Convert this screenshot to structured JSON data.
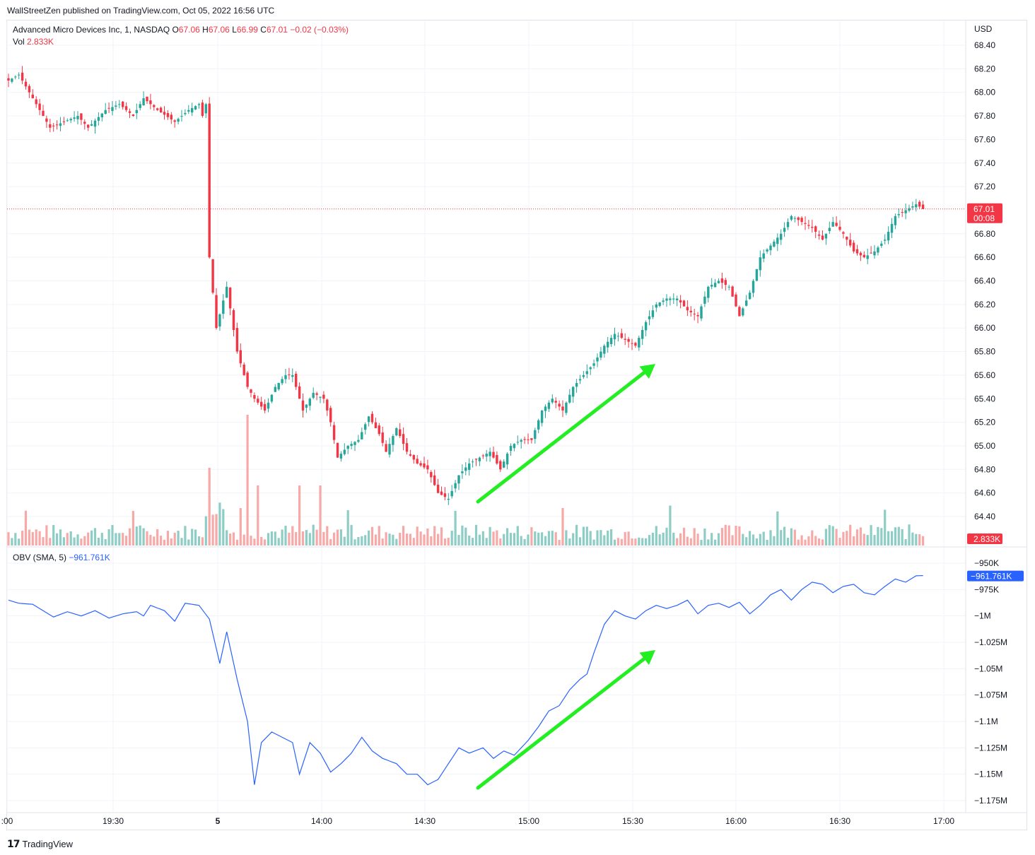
{
  "header": {
    "publisher_text": "WallStreetZen published on TradingView.com, Oct 05, 2022 16:56 UTC"
  },
  "legend": {
    "symbol": "Advanced Micro Devices Inc, 1, NASDAQ",
    "o_label": "O",
    "o_value": "67.06",
    "h_label": "H",
    "h_value": "67.06",
    "l_label": "L",
    "l_value": "66.99",
    "c_label": "C",
    "c_value": "67.01",
    "change": "−0.02 (−0.03%)",
    "vol_label": "Vol",
    "vol_value": "2.833K",
    "obv_label": "OBV (SMA, 5)",
    "obv_value": "−961.761K"
  },
  "badges": {
    "price": "67.01",
    "countdown": "00:08",
    "volume": "2.833K",
    "obv": "−961.761K"
  },
  "footer": {
    "brand": "TradingView",
    "brand_icon": "tradingview-logo-icon"
  },
  "colors": {
    "up": "#26a69a",
    "down": "#f23645",
    "vol_up": "#8dcdc5",
    "vol_down": "#f7a9a7",
    "obv_line": "#2962ff",
    "arrow": "#22ee22",
    "grid": "#f0f3fa"
  },
  "chart_data": [
    {
      "type": "candlestick",
      "title": "Advanced Micro Devices Inc, 1, NASDAQ",
      "currency": "USD",
      "y_ticks": [
        "68.40",
        "68.20",
        "68.00",
        "67.80",
        "67.60",
        "67.40",
        "67.20",
        "66.80",
        "66.60",
        "66.40",
        "66.20",
        "66.00",
        "65.80",
        "65.60",
        "65.40",
        "65.20",
        "65.00",
        "64.80",
        "64.60",
        "64.40"
      ],
      "ylim": [
        64.3,
        68.5
      ],
      "last_price": 67.01,
      "x_ticks": [
        ":00",
        "19:30",
        "5",
        "14:00",
        "14:30",
        "15:00",
        "15:30",
        "16:00",
        "16:30",
        "17:00"
      ],
      "grid": true,
      "anchors": [
        [
          0,
          68.1
        ],
        [
          3,
          68.15
        ],
        [
          5,
          68.05
        ],
        [
          9,
          67.85
        ],
        [
          12,
          67.7
        ],
        [
          16,
          67.75
        ],
        [
          20,
          67.8
        ],
        [
          23,
          67.7
        ],
        [
          28,
          67.85
        ],
        [
          32,
          67.9
        ],
        [
          36,
          67.8
        ],
        [
          39,
          67.95
        ],
        [
          43,
          67.85
        ],
        [
          48,
          67.75
        ],
        [
          52,
          67.85
        ],
        [
          55,
          67.9
        ],
        [
          56,
          67.8
        ],
        [
          57,
          67.9
        ],
        [
          58,
          66.6
        ],
        [
          60,
          66.0
        ],
        [
          63,
          66.35
        ],
        [
          66,
          65.8
        ],
        [
          69,
          65.5
        ],
        [
          71,
          65.4
        ],
        [
          74,
          65.3
        ],
        [
          77,
          65.5
        ],
        [
          80,
          65.6
        ],
        [
          82,
          65.6
        ],
        [
          85,
          65.3
        ],
        [
          88,
          65.45
        ],
        [
          91,
          65.4
        ],
        [
          93,
          65.2
        ],
        [
          95,
          64.9
        ],
        [
          98,
          65.0
        ],
        [
          101,
          65.05
        ],
        [
          104,
          65.25
        ],
        [
          107,
          65.1
        ],
        [
          109,
          64.95
        ],
        [
          112,
          65.15
        ],
        [
          115,
          64.95
        ],
        [
          118,
          64.85
        ],
        [
          121,
          64.8
        ],
        [
          124,
          64.6
        ],
        [
          127,
          64.55
        ],
        [
          130,
          64.75
        ],
        [
          133,
          64.85
        ],
        [
          136,
          64.9
        ],
        [
          139,
          64.95
        ],
        [
          142,
          64.8
        ],
        [
          145,
          65.0
        ],
        [
          148,
          65.05
        ],
        [
          151,
          65.05
        ],
        [
          154,
          65.3
        ],
        [
          157,
          65.4
        ],
        [
          160,
          65.3
        ],
        [
          163,
          65.5
        ],
        [
          166,
          65.6
        ],
        [
          169,
          65.7
        ],
        [
          172,
          65.85
        ],
        [
          175,
          65.95
        ],
        [
          178,
          65.9
        ],
        [
          181,
          65.85
        ],
        [
          184,
          66.05
        ],
        [
          187,
          66.2
        ],
        [
          190,
          66.25
        ],
        [
          193,
          66.25
        ],
        [
          196,
          66.15
        ],
        [
          199,
          66.1
        ],
        [
          202,
          66.35
        ],
        [
          205,
          66.4
        ],
        [
          208,
          66.35
        ],
        [
          211,
          66.1
        ],
        [
          214,
          66.3
        ],
        [
          217,
          66.6
        ],
        [
          220,
          66.7
        ],
        [
          223,
          66.8
        ],
        [
          226,
          66.95
        ],
        [
          229,
          66.9
        ],
        [
          232,
          66.85
        ],
        [
          235,
          66.75
        ],
        [
          238,
          66.9
        ],
        [
          241,
          66.8
        ],
        [
          244,
          66.65
        ],
        [
          247,
          66.6
        ],
        [
          250,
          66.65
        ],
        [
          253,
          66.75
        ],
        [
          256,
          66.95
        ],
        [
          259,
          67.0
        ],
        [
          262,
          67.05
        ],
        [
          264,
          67.01
        ]
      ],
      "volume_level": "2.833K"
    },
    {
      "type": "line",
      "title": "OBV (SMA, 5)",
      "y_ticks": [
        "−950K",
        "−975K",
        "−1M",
        "−1.025M",
        "−1.05M",
        "−1.075M",
        "−1.1M",
        "−1.125M",
        "−1.15M",
        "−1.175M"
      ],
      "ylim": [
        -1180,
        -945
      ],
      "y_unit": "K",
      "last_value": -961.761,
      "anchors": [
        [
          0,
          -985
        ],
        [
          3,
          -988
        ],
        [
          7,
          -989
        ],
        [
          10,
          -995
        ],
        [
          13,
          -1001
        ],
        [
          17,
          -996
        ],
        [
          21,
          -1000
        ],
        [
          25,
          -995
        ],
        [
          29,
          -1002
        ],
        [
          33,
          -998
        ],
        [
          37,
          -996
        ],
        [
          39,
          -1000
        ],
        [
          41,
          -990
        ],
        [
          45,
          -995
        ],
        [
          48,
          -1005
        ],
        [
          51,
          -988
        ],
        [
          55,
          -990
        ],
        [
          58,
          -1003
        ],
        [
          61,
          -1045
        ],
        [
          63,
          -1015
        ],
        [
          66,
          -1060
        ],
        [
          69,
          -1100
        ],
        [
          71,
          -1160
        ],
        [
          73,
          -1120
        ],
        [
          76,
          -1110
        ],
        [
          79,
          -1115
        ],
        [
          82,
          -1120
        ],
        [
          84,
          -1150
        ],
        [
          87,
          -1120
        ],
        [
          90,
          -1130
        ],
        [
          93,
          -1148
        ],
        [
          96,
          -1140
        ],
        [
          99,
          -1130
        ],
        [
          102,
          -1115
        ],
        [
          105,
          -1128
        ],
        [
          108,
          -1135
        ],
        [
          112,
          -1140
        ],
        [
          115,
          -1150
        ],
        [
          118,
          -1150
        ],
        [
          121,
          -1160
        ],
        [
          124,
          -1155
        ],
        [
          127,
          -1140
        ],
        [
          130,
          -1125
        ],
        [
          133,
          -1130
        ],
        [
          137,
          -1125
        ],
        [
          140,
          -1135
        ],
        [
          143,
          -1128
        ],
        [
          146,
          -1132
        ],
        [
          150,
          -1118
        ],
        [
          153,
          -1105
        ],
        [
          156,
          -1090
        ],
        [
          159,
          -1085
        ],
        [
          162,
          -1070
        ],
        [
          165,
          -1060
        ],
        [
          167,
          -1055
        ],
        [
          169,
          -1035
        ],
        [
          172,
          -1008
        ],
        [
          175,
          -995
        ],
        [
          178,
          -1000
        ],
        [
          181,
          -1003
        ],
        [
          184,
          -995
        ],
        [
          187,
          -990
        ],
        [
          190,
          -993
        ],
        [
          193,
          -990
        ],
        [
          196,
          -985
        ],
        [
          199,
          -998
        ],
        [
          202,
          -990
        ],
        [
          205,
          -988
        ],
        [
          208,
          -992
        ],
        [
          211,
          -987
        ],
        [
          214,
          -998
        ],
        [
          217,
          -990
        ],
        [
          220,
          -980
        ],
        [
          223,
          -975
        ],
        [
          226,
          -985
        ],
        [
          229,
          -975
        ],
        [
          232,
          -968
        ],
        [
          235,
          -970
        ],
        [
          238,
          -978
        ],
        [
          241,
          -972
        ],
        [
          244,
          -970
        ],
        [
          247,
          -978
        ],
        [
          250,
          -980
        ],
        [
          253,
          -972
        ],
        [
          256,
          -965
        ],
        [
          259,
          -968
        ],
        [
          262,
          -962
        ],
        [
          264,
          -961.761
        ]
      ]
    }
  ]
}
